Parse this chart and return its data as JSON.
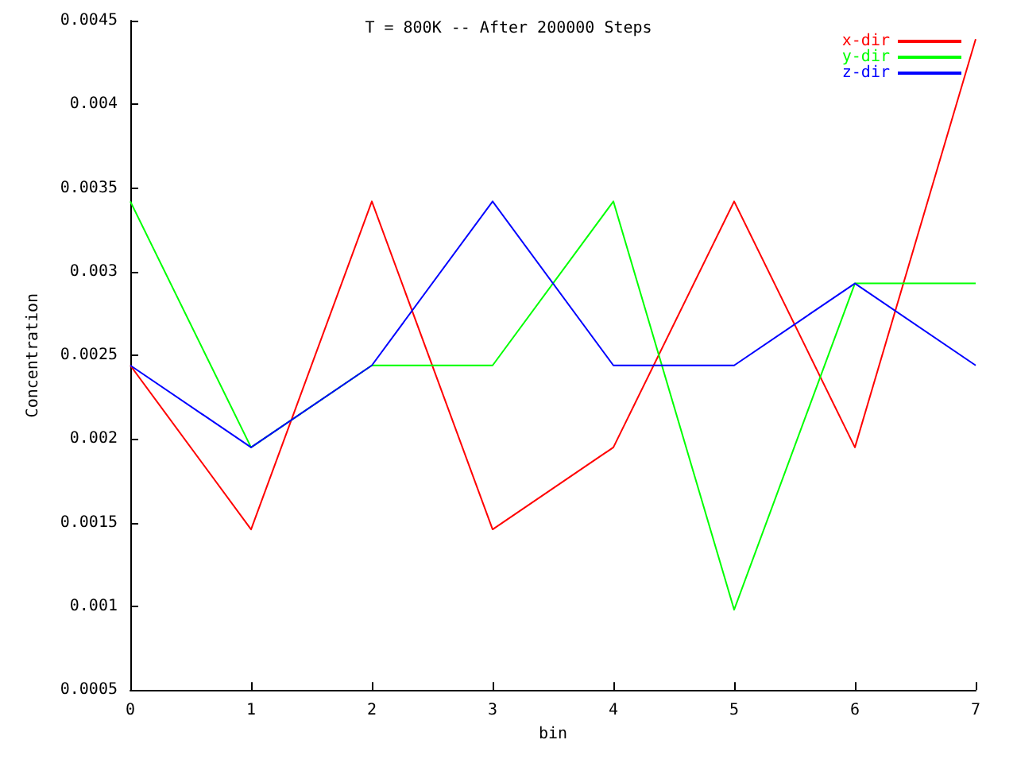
{
  "chart_data": {
    "type": "line",
    "title": "T = 800K -- After 200000 Steps",
    "xlabel": "bin",
    "ylabel": "Concentration",
    "x": [
      0,
      1,
      2,
      3,
      4,
      5,
      6,
      7
    ],
    "series": [
      {
        "name": "x-dir",
        "color": "#ff0000",
        "values": [
          0.00244,
          0.00146,
          0.00342,
          0.00146,
          0.00195,
          0.00342,
          0.00195,
          0.00439
        ]
      },
      {
        "name": "y-dir",
        "color": "#00ff00",
        "values": [
          0.00342,
          0.00195,
          0.00244,
          0.00244,
          0.00342,
          0.00098,
          0.00293,
          0.00293
        ]
      },
      {
        "name": "z-dir",
        "color": "#0000ff",
        "values": [
          0.00244,
          0.00195,
          0.00244,
          0.00342,
          0.00244,
          0.00244,
          0.00293,
          0.00244
        ]
      }
    ],
    "xlim": [
      0,
      7
    ],
    "xticks": [
      0,
      1,
      2,
      3,
      4,
      5,
      6,
      7
    ],
    "ylim": [
      0.0005,
      0.0045
    ],
    "yticks": [
      0.0005,
      0.001,
      0.0015,
      0.002,
      0.0025,
      0.003,
      0.0035,
      0.004,
      0.0045
    ],
    "grid": false,
    "legend": "top right",
    "marker": "none",
    "line_style": "solid"
  }
}
